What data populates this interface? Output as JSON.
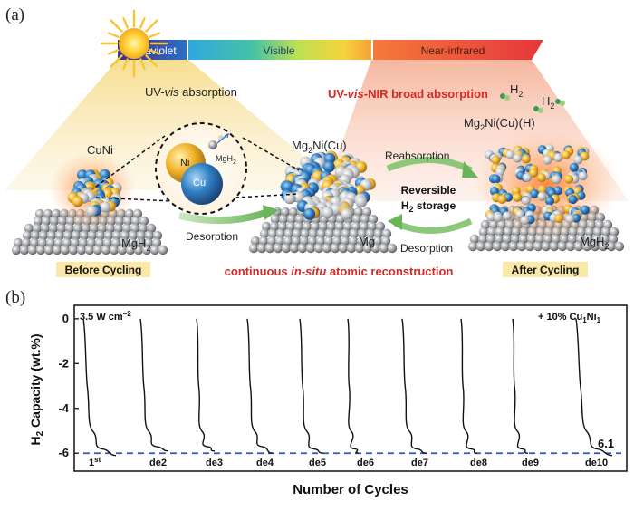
{
  "panel_a": {
    "label": "(a)",
    "spectrum": {
      "uv": "Ultraviolet",
      "visible": "Visible",
      "nir": "Near-infrared"
    },
    "uv_vis_absorption": {
      "prefix": "UV-",
      "italic": "vis",
      "suffix": " absorption"
    },
    "broad_absorption": {
      "prefix": "UV-",
      "italic": "vis",
      "suffix": "-NIR broad absorption"
    },
    "h2": "H",
    "h2_sub": "2",
    "product_top": {
      "a": "Mg",
      "a_sub": "2",
      "b": "Ni(Cu)(H)"
    },
    "cuni": "CuNi",
    "mg2nicu": {
      "a": "Mg",
      "a_sub": "2",
      "b": "Ni(Cu)"
    },
    "inset": {
      "ni": "Ni",
      "cu": "Cu",
      "mgh2": "MgH",
      "mgh2_sub": "2"
    },
    "reabsorption": "Reabsorption",
    "reversible_line1": "Reversible",
    "reversible_line2a": "H",
    "reversible_line2_sub": "2",
    "reversible_line2b": " storage",
    "desorption_left": "Desorption",
    "desorption_right": "Desorption",
    "substrate_left": {
      "a": "MgH",
      "sub": "2"
    },
    "substrate_mid": "Mg",
    "substrate_right": {
      "a": "MgH",
      "sub": "2"
    },
    "before": "Before Cycling",
    "after": "After Cycling",
    "caption": {
      "prefix": "continuous ",
      "italic": "in-situ",
      "suffix": " atomic reconstruction"
    }
  },
  "panel_b": {
    "label": "(b)",
    "power": {
      "a": "3.5 W cm",
      "sup": "−2"
    },
    "additive": {
      "a": "+ 10% Cu",
      "s1": "1",
      "b": "Ni",
      "s2": "1"
    },
    "ylabel": {
      "a": "H",
      "sub": "2",
      "b": " Capacity (wt.%)"
    },
    "xlabel": "Number of Cycles",
    "final_value_label": "6.1",
    "colors": {
      "curve": "#111111",
      "reference": "#2d57b8"
    }
  },
  "chart_data": {
    "type": "line",
    "title": "",
    "xlabel": "Number of Cycles",
    "ylabel": "H2 Capacity (wt.%)",
    "ylim": [
      -6.8,
      0.6
    ],
    "yticks": [
      0,
      -2,
      -4,
      -6
    ],
    "grid": false,
    "reference_line": {
      "y": -6,
      "style": "dashed"
    },
    "cycle_labels": [
      "1st",
      "de2",
      "de3",
      "de4",
      "de5",
      "de6",
      "de7",
      "de8",
      "de9",
      "de10"
    ],
    "series": [
      {
        "values": [
          0.0,
          -3.0,
          -5.0,
          -5.8,
          -6.1
        ]
      },
      {
        "values": [
          0.0,
          -3.0,
          -5.0,
          -5.7,
          -5.9
        ]
      },
      {
        "values": [
          0.0,
          -3.0,
          -5.0,
          -5.7,
          -5.9
        ]
      },
      {
        "values": [
          0.0,
          -3.0,
          -5.0,
          -5.7,
          -6.0
        ]
      },
      {
        "values": [
          0.0,
          -3.0,
          -5.0,
          -5.8,
          -6.0
        ]
      },
      {
        "values": [
          0.0,
          -3.0,
          -5.0,
          -5.8,
          -6.0
        ]
      },
      {
        "values": [
          0.0,
          -3.0,
          -5.0,
          -5.8,
          -6.0
        ]
      },
      {
        "values": [
          0.0,
          -3.0,
          -5.0,
          -5.8,
          -6.0
        ]
      },
      {
        "values": [
          0.0,
          -3.0,
          -5.0,
          -5.8,
          -6.0
        ]
      },
      {
        "values": [
          0.0,
          -3.0,
          -5.0,
          -5.8,
          -6.1
        ]
      }
    ],
    "annotations": [
      "6.1"
    ]
  }
}
